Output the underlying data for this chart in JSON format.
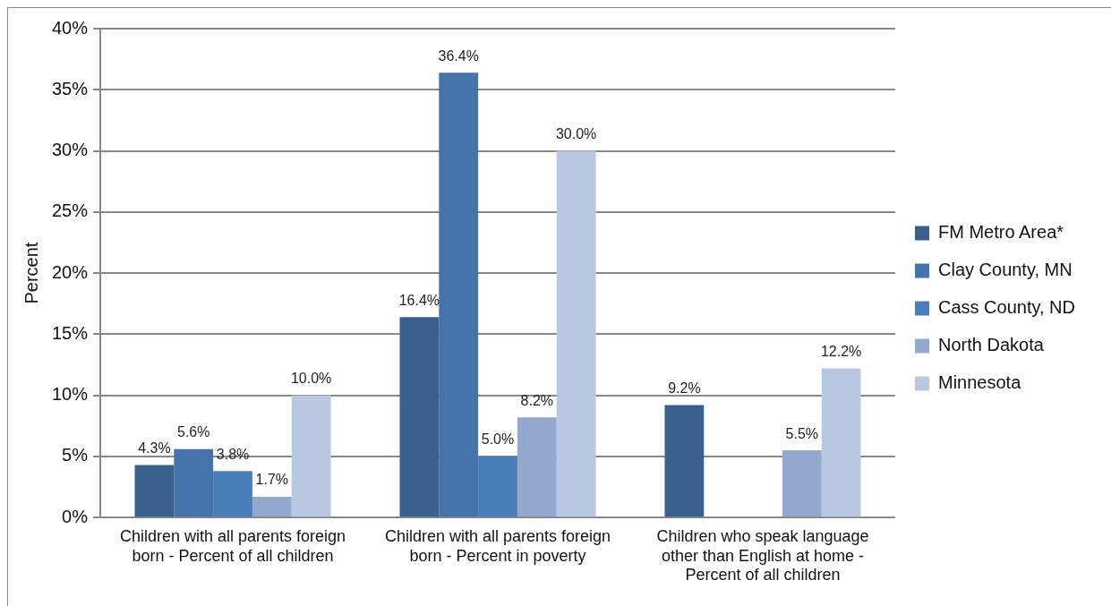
{
  "chart_data": {
    "type": "bar",
    "ylabel": "Percent",
    "categories": [
      "Children with all parents foreign born - Percent of all children",
      "Children with all parents foreign born - Percent in poverty",
      "Children who speak language other than English at home - Percent of all children"
    ],
    "series": [
      {
        "name": "FM Metro Area*",
        "color": "#3a5f8d",
        "values": [
          4.3,
          16.4,
          9.2
        ],
        "value_labels": [
          "4.3%",
          "16.4%",
          "9.2%"
        ]
      },
      {
        "name": "Clay County, MN",
        "color": "#4674aa",
        "values": [
          5.6,
          36.4,
          null
        ],
        "value_labels": [
          "5.6%",
          "36.4%",
          null
        ]
      },
      {
        "name": "Cass County, ND",
        "color": "#4a7ebb",
        "values": [
          3.8,
          5.0,
          null
        ],
        "value_labels": [
          "3.8%",
          "5.0%",
          null
        ]
      },
      {
        "name": "North Dakota",
        "color": "#95a9d0",
        "values": [
          1.7,
          8.2,
          5.5
        ],
        "value_labels": [
          "1.7%",
          "8.2%",
          "5.5%"
        ]
      },
      {
        "name": "Minnesota",
        "color": "#bac7e0",
        "values": [
          10.0,
          30.0,
          12.2
        ],
        "value_labels": [
          "10.0%",
          "30.0%",
          "12.2%"
        ]
      }
    ],
    "ylim": [
      0,
      40
    ],
    "yticks": [
      {
        "value": 0,
        "label": "0%"
      },
      {
        "value": 5,
        "label": "5%"
      },
      {
        "value": 10,
        "label": "10%"
      },
      {
        "value": 15,
        "label": "15%"
      },
      {
        "value": 20,
        "label": "20%"
      },
      {
        "value": 25,
        "label": "25%"
      },
      {
        "value": 30,
        "label": "30%"
      },
      {
        "value": 35,
        "label": "35%"
      },
      {
        "value": 40,
        "label": "40%"
      }
    ],
    "grid": "y",
    "legend": "right"
  }
}
